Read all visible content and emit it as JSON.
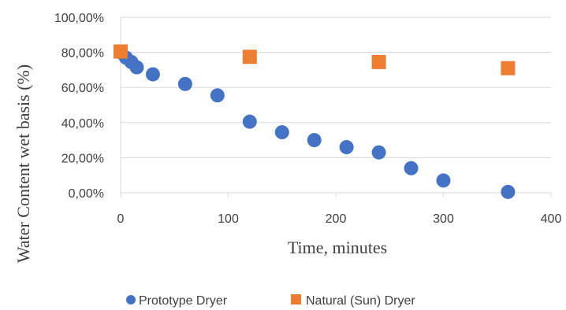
{
  "chart_data": {
    "type": "scatter",
    "xlabel": "Time, minutes",
    "ylabel": "Water Content wet basis (%)",
    "xlim": [
      0,
      400
    ],
    "ylim": [
      0,
      100
    ],
    "x_ticks": [
      "0",
      "100",
      "200",
      "300",
      "400"
    ],
    "y_ticks": [
      "0,00%",
      "20,00%",
      "40,00%",
      "60,00%",
      "80,00%",
      "100,00%"
    ],
    "grid": "horizontal",
    "legend_position": "bottom",
    "series": [
      {
        "name": "Prototype Dryer",
        "marker": "circle",
        "color": "#4472c4",
        "points": [
          {
            "x": 0,
            "y": 80.0
          },
          {
            "x": 5,
            "y": 77.0
          },
          {
            "x": 10,
            "y": 74.5
          },
          {
            "x": 15,
            "y": 71.5
          },
          {
            "x": 30,
            "y": 67.5
          },
          {
            "x": 60,
            "y": 62.0
          },
          {
            "x": 90,
            "y": 55.5
          },
          {
            "x": 120,
            "y": 40.5
          },
          {
            "x": 150,
            "y": 34.5
          },
          {
            "x": 180,
            "y": 30.0
          },
          {
            "x": 210,
            "y": 26.0
          },
          {
            "x": 240,
            "y": 23.0
          },
          {
            "x": 270,
            "y": 14.0
          },
          {
            "x": 300,
            "y": 7.0
          },
          {
            "x": 360,
            "y": 0.5
          }
        ]
      },
      {
        "name": "Natural (Sun) Dryer",
        "marker": "square",
        "color": "#ed7d31",
        "points": [
          {
            "x": 0,
            "y": 80.5
          },
          {
            "x": 120,
            "y": 77.5
          },
          {
            "x": 240,
            "y": 74.5
          },
          {
            "x": 360,
            "y": 71.0
          }
        ]
      }
    ]
  }
}
